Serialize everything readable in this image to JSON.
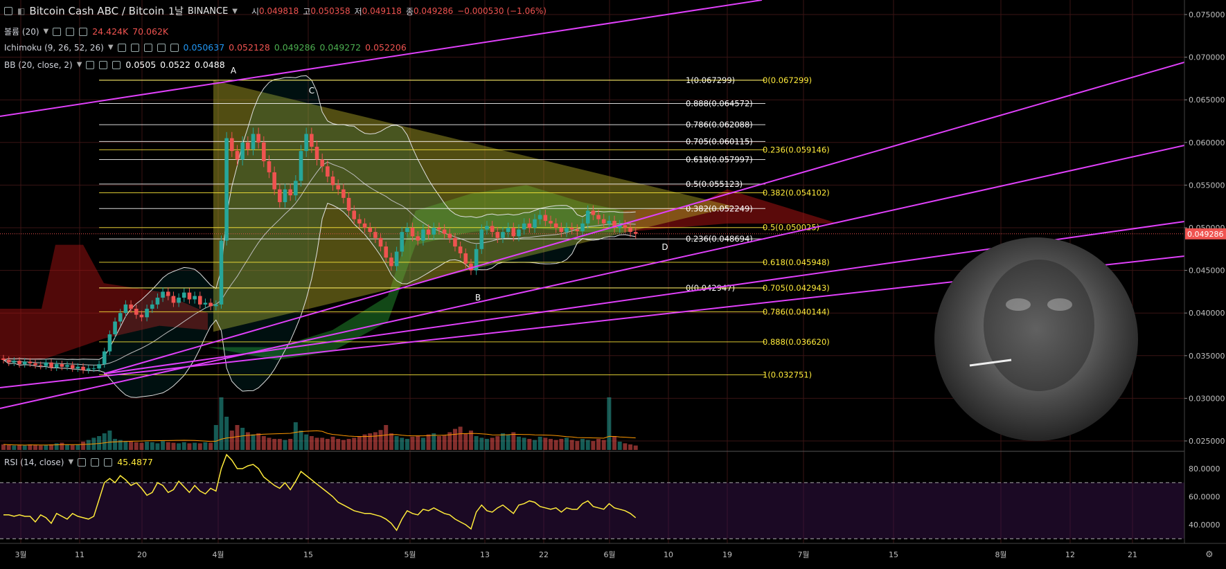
{
  "header": {
    "symbol": "Bitcoin Cash ABC / Bitcoin",
    "interval": "1날",
    "exchange": "BINANCE",
    "o_label": "시",
    "o": "0.049818",
    "h_label": "고",
    "h": "0.050358",
    "l_label": "저",
    "l": "0.049118",
    "c_label": "종",
    "c": "0.049286",
    "change": "−0.000530 (−1.06%)"
  },
  "indicators": {
    "volume": {
      "label": "볼륨 (20)",
      "v1": "24.424K",
      "v2": "70.062K"
    },
    "ichimoku": {
      "label": "Ichimoku (9, 26, 52, 26)",
      "v1": "0.050637",
      "v2": "0.052128",
      "v3": "0.049286",
      "v4": "0.049272",
      "v5": "0.052206"
    },
    "bb": {
      "label": "BB (20, close, 2)",
      "v1": "0.0505",
      "v2": "0.0522",
      "v3": "0.0488"
    },
    "rsi": {
      "label": "RSI (14, close)",
      "value": "45.4877"
    }
  },
  "colors": {
    "up": "#26a69a",
    "down": "#ef5350",
    "fib1": "#ffffff",
    "fib2": "#ffeb3b",
    "trend": "#e040fb",
    "rsi": "#ffeb3b"
  },
  "chart_data": {
    "type": "candlestick",
    "symbol": "Bitcoin Cash ABC / Bitcoin",
    "ylim": [
      0.0245,
      0.0755
    ],
    "price_ticks": [
      "0.075000",
      "0.070000",
      "0.065000",
      "0.060000",
      "0.055000",
      "0.050000",
      "0.045000",
      "0.040000",
      "0.035000",
      "0.030000",
      "0.025000"
    ],
    "last_price": "0.049286",
    "rsi_ticks": [
      "80.0000",
      "60.0000",
      "40.0000"
    ],
    "rsi_bands": [
      70,
      30
    ],
    "x_ticks": [
      "3월",
      "11",
      "20",
      "4월",
      "15",
      "5월",
      "13",
      "22",
      "6월",
      "10",
      "19",
      "7월",
      "15",
      "8월",
      "12",
      "21"
    ],
    "points": {
      "A": "A",
      "B": "B",
      "C": "C",
      "D": "D"
    },
    "fib_white": [
      {
        "label": "1(0.067299)",
        "price": 0.067299
      },
      {
        "label": "0.888(0.064572)",
        "price": 0.064572
      },
      {
        "label": "0.786(0.062088)",
        "price": 0.062088
      },
      {
        "label": "0.705(0.060115)",
        "price": 0.060115
      },
      {
        "label": "0.618(0.057997)",
        "price": 0.057997
      },
      {
        "label": "0.5(0.055123)",
        "price": 0.055123
      },
      {
        "label": "0.382(0.052249)",
        "price": 0.052249
      },
      {
        "label": "0.236(0.048694)",
        "price": 0.048694
      },
      {
        "label": "0(0.042947)",
        "price": 0.042947
      }
    ],
    "fib_yellow": [
      {
        "label": "0(0.067299)",
        "price": 0.067299
      },
      {
        "label": "0.236(0.059146)",
        "price": 0.059146
      },
      {
        "label": "0.382(0.054102)",
        "price": 0.054102
      },
      {
        "label": "0.5(0.050025)",
        "price": 0.050025
      },
      {
        "label": "0.618(0.045948)",
        "price": 0.045948
      },
      {
        "label": "0.705(0.042943)",
        "price": 0.042943
      },
      {
        "label": "0.786(0.040144)",
        "price": 0.040144
      },
      {
        "label": "0.888(0.036620)",
        "price": 0.03662
      },
      {
        "label": "1(0.032751)",
        "price": 0.032751
      }
    ],
    "closes": [
      0.0345,
      0.0342,
      0.0344,
      0.034,
      0.0343,
      0.0341,
      0.0339,
      0.0338,
      0.0342,
      0.0336,
      0.034,
      0.0337,
      0.0339,
      0.0335,
      0.0337,
      0.0333,
      0.0335,
      0.0335,
      0.034,
      0.0355,
      0.0375,
      0.039,
      0.04,
      0.041,
      0.0405,
      0.0398,
      0.0395,
      0.0405,
      0.041,
      0.0418,
      0.0425,
      0.042,
      0.0412,
      0.0418,
      0.0424,
      0.0416,
      0.042,
      0.041,
      0.0412,
      0.0408,
      0.041,
      0.0485,
      0.0605,
      0.059,
      0.058,
      0.06,
      0.0592,
      0.061,
      0.06,
      0.0578,
      0.0565,
      0.0545,
      0.053,
      0.0545,
      0.0538,
      0.0555,
      0.059,
      0.061,
      0.0595,
      0.058,
      0.0572,
      0.056,
      0.055,
      0.0545,
      0.0535,
      0.052,
      0.051,
      0.0505,
      0.05,
      0.0495,
      0.0488,
      0.0478,
      0.0465,
      0.0455,
      0.0472,
      0.0495,
      0.05,
      0.049,
      0.0485,
      0.0498,
      0.0492,
      0.05,
      0.0498,
      0.0493,
      0.0488,
      0.0478,
      0.047,
      0.0458,
      0.045,
      0.0475,
      0.0498,
      0.0502,
      0.0495,
      0.0488,
      0.0495,
      0.05,
      0.049,
      0.0498,
      0.0505,
      0.05,
      0.051,
      0.0515,
      0.0508,
      0.0505,
      0.05,
      0.0495,
      0.05,
      0.0498,
      0.0496,
      0.0505,
      0.052,
      0.0515,
      0.051,
      0.0505,
      0.0508,
      0.05,
      0.0503,
      0.05,
      0.0495,
      0.0493
    ],
    "volumes": [
      0.1,
      0.09,
      0.08,
      0.09,
      0.08,
      0.1,
      0.09,
      0.08,
      0.09,
      0.1,
      0.12,
      0.13,
      0.1,
      0.09,
      0.1,
      0.15,
      0.18,
      0.22,
      0.25,
      0.3,
      0.35,
      0.2,
      0.18,
      0.16,
      0.15,
      0.14,
      0.13,
      0.15,
      0.14,
      0.12,
      0.16,
      0.14,
      0.13,
      0.12,
      0.14,
      0.12,
      0.13,
      0.12,
      0.14,
      0.13,
      0.45,
      0.95,
      0.6,
      0.35,
      0.45,
      0.4,
      0.32,
      0.28,
      0.3,
      0.25,
      0.22,
      0.2,
      0.2,
      0.18,
      0.2,
      0.5,
      0.35,
      0.28,
      0.25,
      0.22,
      0.22,
      0.2,
      0.24,
      0.2,
      0.18,
      0.2,
      0.22,
      0.25,
      0.28,
      0.3,
      0.32,
      0.36,
      0.45,
      0.3,
      0.25,
      0.22,
      0.2,
      0.24,
      0.26,
      0.22,
      0.28,
      0.3,
      0.25,
      0.26,
      0.32,
      0.38,
      0.42,
      0.3,
      0.35,
      0.25,
      0.22,
      0.2,
      0.22,
      0.25,
      0.3,
      0.28,
      0.32,
      0.24,
      0.22,
      0.2,
      0.18,
      0.24,
      0.22,
      0.2,
      0.18,
      0.2,
      0.22,
      0.18,
      0.16,
      0.2,
      0.18,
      0.16,
      0.2,
      0.18,
      0.95,
      0.25,
      0.15,
      0.12,
      0.1,
      0.08
    ],
    "rsi": [
      47,
      47,
      46,
      47,
      46,
      46,
      42,
      47,
      45,
      41,
      48,
      46,
      44,
      48,
      46,
      45,
      44,
      46,
      58,
      70,
      73,
      70,
      75,
      72,
      68,
      70,
      66,
      61,
      63,
      70,
      68,
      63,
      65,
      71,
      67,
      63,
      68,
      64,
      62,
      66,
      64,
      80,
      90,
      86,
      80,
      80,
      82,
      83,
      80,
      74,
      71,
      68,
      66,
      70,
      65,
      71,
      78,
      75,
      72,
      69,
      66,
      63,
      60,
      56,
      54,
      52,
      50,
      49,
      48,
      48,
      47,
      46,
      44,
      41,
      36,
      44,
      50,
      48,
      47,
      51,
      50,
      52,
      50,
      48,
      47,
      44,
      42,
      40,
      37,
      49,
      54,
      50,
      49,
      52,
      54,
      51,
      48,
      54,
      55,
      57,
      56,
      53,
      52,
      51,
      52,
      49,
      52,
      51,
      51,
      55,
      57,
      53,
      52,
      51,
      55,
      52,
      51,
      50,
      48,
      45
    ]
  }
}
